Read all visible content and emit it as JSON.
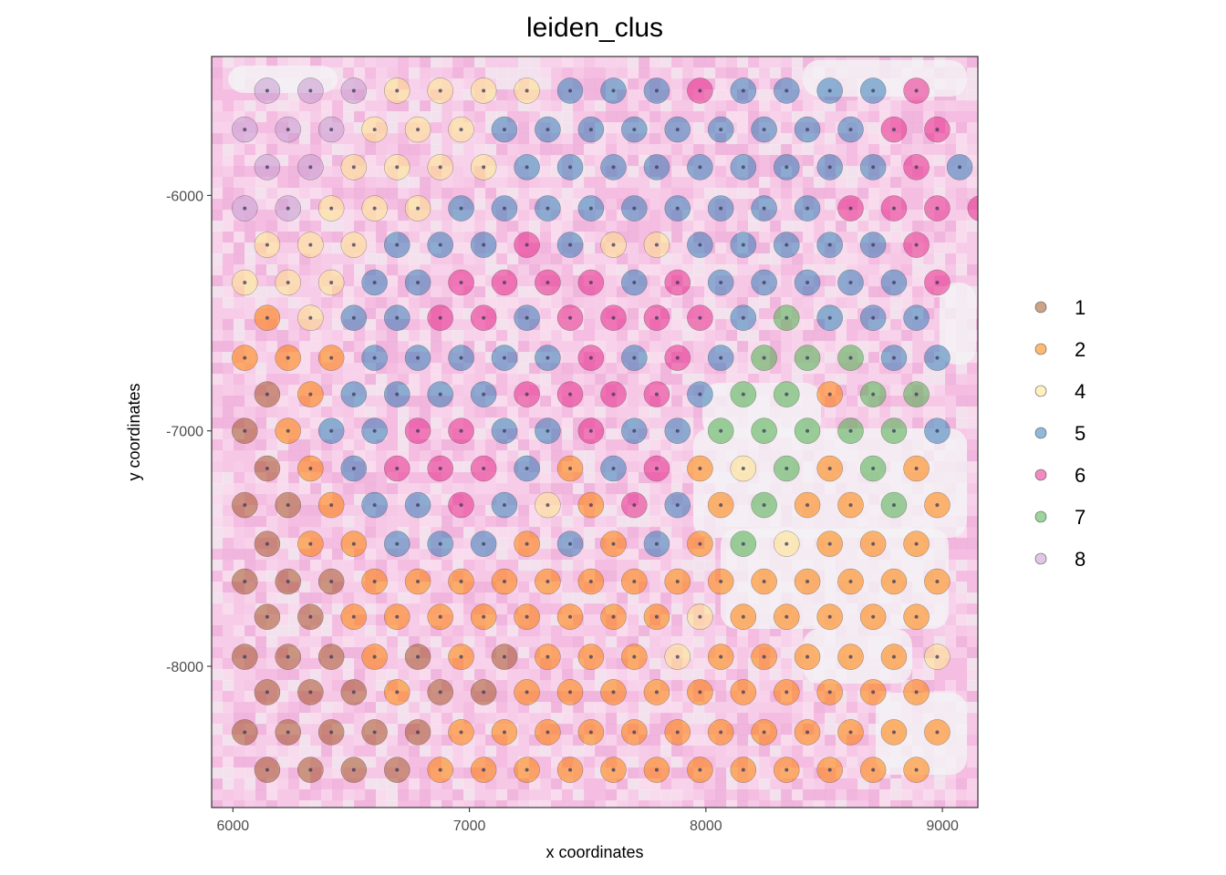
{
  "chart_data": {
    "type": "scatter",
    "title": "leiden_clus",
    "xlabel": "x coordinates",
    "ylabel": "y coordinates",
    "xlim": [
      5910,
      9150
    ],
    "ylim": [
      -8600,
      -5410
    ],
    "x_ticks": [
      6000,
      7000,
      8000,
      9000
    ],
    "y_ticks": [
      -6000,
      -7000,
      -8000
    ],
    "grid": false,
    "background": "H&E-like tissue image (pink/white) behind spots",
    "legend_position": "right",
    "legend": [
      "1",
      "2",
      "4",
      "5",
      "6",
      "7",
      "8"
    ],
    "colors": {
      "1": "#a65628",
      "2": "#ff7f00",
      "4": "#ffe48a",
      "5": "#377eb8",
      "6": "#e7298a",
      "7": "#4daf4a",
      "8": "#c79bd0"
    },
    "rows": [
      {
        "y": -5555,
        "x0": 6145,
        "clusters": [
          "8",
          "8",
          "8",
          "4",
          "4",
          "4",
          "4",
          "5",
          "5",
          "5",
          "6",
          "5",
          "5",
          "5",
          "5",
          "6"
        ]
      },
      {
        "y": -5720,
        "x0": 6050,
        "clusters": [
          "8",
          "8",
          "8",
          "4",
          "4",
          "4",
          "5",
          "5",
          "5",
          "5",
          "5",
          "5",
          "5",
          "5",
          "5",
          "6",
          "6"
        ]
      },
      {
        "y": -5880,
        "x0": 6145,
        "clusters": [
          "8",
          "8",
          "4",
          "4",
          "4",
          "4",
          "5",
          "5",
          "5",
          "5",
          "5",
          "5",
          "5",
          "5",
          "5",
          "6",
          "5"
        ]
      },
      {
        "y": -6055,
        "x0": 6050,
        "clusters": [
          "8",
          "8",
          "4",
          "4",
          "4",
          "5",
          "5",
          "5",
          "5",
          "5",
          "5",
          "5",
          "5",
          "5",
          "6",
          "6",
          "6",
          "6"
        ]
      },
      {
        "y": -6210,
        "x0": 6145,
        "clusters": [
          "4",
          "4",
          "4",
          "5",
          "5",
          "5",
          "6",
          "5",
          "4",
          "4",
          "5",
          "5",
          "5",
          "5",
          "5",
          "6"
        ]
      },
      {
        "y": -6370,
        "x0": 6050,
        "clusters": [
          "4",
          "4",
          "4",
          "5",
          "5",
          "6",
          "6",
          "6",
          "6",
          "5",
          "6",
          "5",
          "5",
          "5",
          "5",
          "5",
          "6"
        ]
      },
      {
        "y": -6520,
        "x0": 6145,
        "clusters": [
          "2",
          "4",
          "5",
          "5",
          "6",
          "6",
          "5",
          "6",
          "6",
          "6",
          "6",
          "5",
          "7",
          "5",
          "5",
          "5"
        ]
      },
      {
        "y": -6690,
        "x0": 6050,
        "clusters": [
          "2",
          "2",
          "2",
          "5",
          "5",
          "5",
          "5",
          "5",
          "6",
          "5",
          "6",
          "5",
          "7",
          "7",
          "7",
          "5",
          "5"
        ]
      },
      {
        "y": -6845,
        "x0": 6145,
        "clusters": [
          "1",
          "2",
          "5",
          "5",
          "5",
          "5",
          "6",
          "6",
          "6",
          "6",
          "5",
          "7",
          "7",
          "2",
          "7",
          "7"
        ]
      },
      {
        "y": -7000,
        "x0": 6050,
        "clusters": [
          "1",
          "2",
          "5",
          "5",
          "6",
          "6",
          "5",
          "5",
          "6",
          "5",
          "5",
          "7",
          "7",
          "7",
          "7",
          "7",
          "5"
        ]
      },
      {
        "y": -7160,
        "x0": 6145,
        "clusters": [
          "1",
          "2",
          "5",
          "6",
          "6",
          "6",
          "5",
          "2",
          "5",
          "6",
          "2",
          "4",
          "7",
          "2",
          "7",
          "2"
        ]
      },
      {
        "y": -7315,
        "x0": 6050,
        "clusters": [
          "1",
          "1",
          "2",
          "5",
          "5",
          "6",
          "5",
          "4",
          "2",
          "6",
          "5",
          "2",
          "7",
          "2",
          "2",
          "7",
          "2"
        ]
      },
      {
        "y": -7480,
        "x0": 6145,
        "clusters": [
          "1",
          "2",
          "2",
          "5",
          "5",
          "5",
          "2",
          "5",
          "2",
          "5",
          "2",
          "7",
          "4",
          "2",
          "2",
          "2"
        ]
      },
      {
        "y": -7640,
        "x0": 6050,
        "clusters": [
          "1",
          "1",
          "1",
          "2",
          "2",
          "2",
          "2",
          "2",
          "2",
          "2",
          "2",
          "2",
          "2",
          "2",
          "2",
          "2",
          "2"
        ]
      },
      {
        "y": -7790,
        "x0": 6145,
        "clusters": [
          "1",
          "1",
          "2",
          "2",
          "2",
          "2",
          "2",
          "2",
          "2",
          "2",
          "4",
          "2",
          "2",
          "2",
          "2",
          "2"
        ]
      },
      {
        "y": -7960,
        "x0": 6050,
        "clusters": [
          "1",
          "1",
          "1",
          "2",
          "1",
          "2",
          "1",
          "2",
          "2",
          "2",
          "4",
          "2",
          "2",
          "2",
          "2",
          "2",
          "4"
        ]
      },
      {
        "y": -8110,
        "x0": 6145,
        "clusters": [
          "1",
          "1",
          "1",
          "2",
          "1",
          "1",
          "2",
          "2",
          "2",
          "2",
          "2",
          "2",
          "2",
          "2",
          "2",
          "2"
        ]
      },
      {
        "y": -8280,
        "x0": 6050,
        "clusters": [
          "1",
          "1",
          "1",
          "1",
          "1",
          "2",
          "2",
          "2",
          "2",
          "2",
          "2",
          "2",
          "2",
          "2",
          "2",
          "2",
          "2"
        ]
      },
      {
        "y": -8440,
        "x0": 6145,
        "clusters": [
          "1",
          "1",
          "1",
          "1",
          "2",
          "2",
          "2",
          "2",
          "2",
          "2",
          "2",
          "2",
          "2",
          "2",
          "2",
          "2"
        ]
      }
    ],
    "x_step": 183
  }
}
